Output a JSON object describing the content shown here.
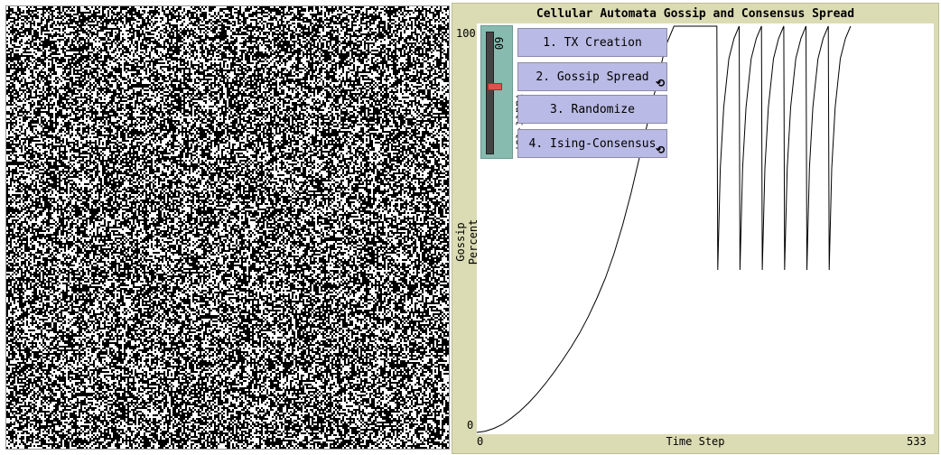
{
  "plot": {
    "title": "Cellular Automata Gossip and Consensus Spread",
    "x_label": "Time Step",
    "y_label": "Gossip Percent",
    "x_min": "0",
    "x_max": "533",
    "y_min": "0",
    "y_max": "100"
  },
  "controls": {
    "button1": "1. TX Creation",
    "button2": "2. Gossip Spread",
    "button3": "3. Randomize",
    "button4": "4. Ising-Consensus",
    "slider_name": "fault-tor",
    "slider_value": "60"
  },
  "colors": {
    "plot_bg": "#dcdcb4",
    "button_bg": "#babae6",
    "slider_bg": "#88bbaf",
    "knob": "#e05050",
    "cell_on": "#000000",
    "cell_off": "#ffffff"
  },
  "icons": [
    "forever-icon"
  ],
  "chart_data": {
    "type": "line",
    "title": "Cellular Automata Gossip and Consensus Spread",
    "xlabel": "Time Step",
    "ylabel": "Gossip Percent",
    "xlim": [
      0,
      533
    ],
    "ylim": [
      0,
      100
    ],
    "series": [
      {
        "points": [
          [
            0,
            0
          ],
          [
            10,
            0.3
          ],
          [
            20,
            1
          ],
          [
            30,
            2
          ],
          [
            40,
            3.5
          ],
          [
            50,
            5.2
          ],
          [
            60,
            7.2
          ],
          [
            70,
            9.5
          ],
          [
            80,
            12
          ],
          [
            90,
            14.8
          ],
          [
            100,
            17.8
          ],
          [
            110,
            21
          ],
          [
            120,
            24.5
          ],
          [
            130,
            28.5
          ],
          [
            140,
            33
          ],
          [
            150,
            38
          ],
          [
            160,
            44
          ],
          [
            170,
            51
          ],
          [
            180,
            59
          ],
          [
            190,
            68
          ],
          [
            200,
            77
          ],
          [
            210,
            86
          ],
          [
            220,
            95
          ],
          [
            230,
            100
          ],
          [
            280,
            100
          ],
          [
            281,
            40
          ],
          [
            284,
            65
          ],
          [
            288,
            80
          ],
          [
            294,
            92
          ],
          [
            300,
            97
          ],
          [
            306,
            100
          ],
          [
            307,
            40
          ],
          [
            310,
            65
          ],
          [
            314,
            80
          ],
          [
            320,
            92
          ],
          [
            326,
            97
          ],
          [
            332,
            100
          ],
          [
            333,
            40
          ],
          [
            336,
            65
          ],
          [
            340,
            80
          ],
          [
            346,
            92
          ],
          [
            352,
            97
          ],
          [
            358,
            100
          ],
          [
            359,
            40
          ],
          [
            362,
            65
          ],
          [
            366,
            80
          ],
          [
            372,
            92
          ],
          [
            378,
            97
          ],
          [
            384,
            100
          ],
          [
            385,
            40
          ],
          [
            388,
            65
          ],
          [
            392,
            80
          ],
          [
            398,
            92
          ],
          [
            404,
            97
          ],
          [
            410,
            100
          ],
          [
            411,
            40
          ],
          [
            414,
            65
          ],
          [
            418,
            80
          ],
          [
            424,
            92
          ],
          [
            430,
            97
          ],
          [
            436,
            100
          ]
        ]
      }
    ]
  }
}
